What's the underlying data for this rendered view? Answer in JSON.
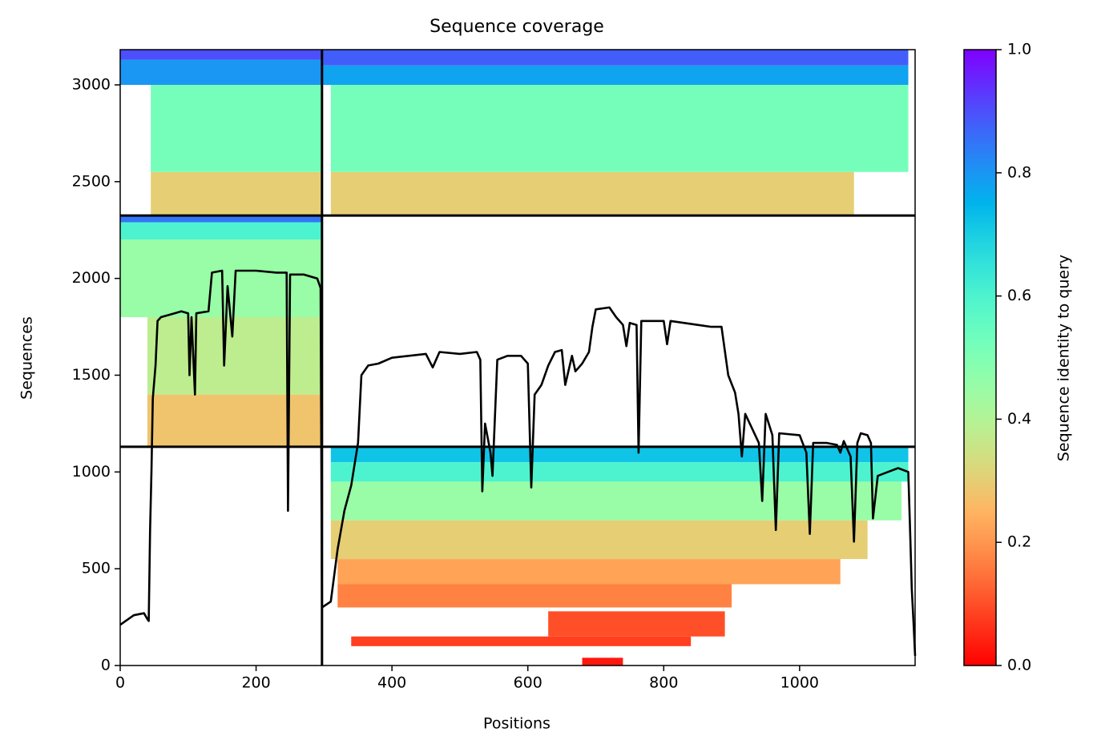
{
  "chart_data": {
    "type": "coverage",
    "title": "Sequence coverage",
    "xlabel": "Positions",
    "ylabel": "Sequences",
    "xlim": [
      0,
      1170
    ],
    "ylim": [
      0,
      3182
    ],
    "xticks": [
      0,
      200,
      400,
      600,
      800,
      1000
    ],
    "yticks": [
      0,
      500,
      1000,
      1500,
      2000,
      2500,
      3000
    ],
    "colormap": "rainbow_r",
    "colorbar": {
      "label": "Sequence identity to query",
      "lim": [
        0,
        1
      ],
      "ticks": [
        {
          "value": 0,
          "label": "0.0"
        },
        {
          "value": 0.2,
          "label": "0.2"
        },
        {
          "value": 0.4,
          "label": "0.4"
        },
        {
          "value": 0.6,
          "label": "0.6"
        },
        {
          "value": 0.8,
          "label": "0.8"
        },
        {
          "value": 1,
          "label": "1.0"
        }
      ]
    },
    "blocks": [
      {
        "x": [
          0,
          297
        ],
        "y": [
          3130,
          3182
        ],
        "identity": 0.9
      },
      {
        "x": [
          0,
          297
        ],
        "y": [
          3000,
          3130
        ],
        "identity": 0.8
      },
      {
        "x": [
          45,
          297
        ],
        "y": [
          2550,
          3000
        ],
        "identity": 0.52
      },
      {
        "x": [
          45,
          297
        ],
        "y": [
          2330,
          2550
        ],
        "identity": 0.3
      },
      {
        "x": [
          297,
          1160
        ],
        "y": [
          3100,
          3182
        ],
        "identity": 0.88
      },
      {
        "x": [
          297,
          1160
        ],
        "y": [
          3000,
          3100
        ],
        "identity": 0.78
      },
      {
        "x": [
          310,
          1160
        ],
        "y": [
          2550,
          3000
        ],
        "identity": 0.52
      },
      {
        "x": [
          310,
          1080
        ],
        "y": [
          2330,
          2550
        ],
        "identity": 0.3
      },
      {
        "x": [
          0,
          297
        ],
        "y": [
          2290,
          2325
        ],
        "identity": 0.85
      },
      {
        "x": [
          0,
          297
        ],
        "y": [
          2200,
          2290
        ],
        "identity": 0.6
      },
      {
        "x": [
          0,
          297
        ],
        "y": [
          1800,
          2200
        ],
        "identity": 0.45
      },
      {
        "x": [
          40,
          297
        ],
        "y": [
          1400,
          1800
        ],
        "identity": 0.38
      },
      {
        "x": [
          40,
          297
        ],
        "y": [
          1130,
          1400
        ],
        "identity": 0.28
      },
      {
        "x": [
          310,
          1160
        ],
        "y": [
          1050,
          1130
        ],
        "identity": 0.72
      },
      {
        "x": [
          310,
          1160
        ],
        "y": [
          950,
          1050
        ],
        "identity": 0.6
      },
      {
        "x": [
          310,
          1150
        ],
        "y": [
          750,
          950
        ],
        "identity": 0.45
      },
      {
        "x": [
          310,
          1100
        ],
        "y": [
          550,
          750
        ],
        "identity": 0.3
      },
      {
        "x": [
          320,
          1060
        ],
        "y": [
          420,
          550
        ],
        "identity": 0.22
      },
      {
        "x": [
          320,
          900
        ],
        "y": [
          300,
          420
        ],
        "identity": 0.17
      },
      {
        "x": [
          630,
          890
        ],
        "y": [
          150,
          280
        ],
        "identity": 0.1
      },
      {
        "x": [
          340,
          840
        ],
        "y": [
          100,
          150
        ],
        "identity": 0.08
      },
      {
        "x": [
          680,
          740
        ],
        "y": [
          0,
          40
        ],
        "identity": 0.03
      }
    ],
    "dividers": {
      "x": [
        297
      ],
      "y": [
        1130,
        2325
      ]
    },
    "coverage": {
      "color": "#000000",
      "x": [
        0,
        20,
        35,
        40,
        42,
        44,
        46,
        48,
        52,
        55,
        60,
        70,
        80,
        90,
        100,
        102,
        105,
        110,
        112,
        130,
        135,
        150,
        153,
        158,
        165,
        170,
        200,
        230,
        245,
        247,
        250,
        270,
        290,
        295,
        297,
        310,
        320,
        330,
        340,
        350,
        355,
        365,
        380,
        400,
        450,
        460,
        470,
        500,
        525,
        530,
        533,
        537,
        545,
        548,
        555,
        570,
        590,
        600,
        605,
        610,
        620,
        630,
        640,
        650,
        655,
        665,
        670,
        680,
        690,
        695,
        700,
        720,
        730,
        740,
        745,
        750,
        760,
        763,
        767,
        800,
        805,
        810,
        850,
        870,
        885,
        895,
        905,
        910,
        915,
        920,
        940,
        945,
        950,
        960,
        965,
        970,
        1000,
        1010,
        1015,
        1020,
        1040,
        1055,
        1060,
        1065,
        1075,
        1080,
        1085,
        1090,
        1100,
        1105,
        1108,
        1115,
        1130,
        1145,
        1160,
        1163,
        1165,
        1168,
        1170
      ],
      "values": [
        210,
        260,
        270,
        240,
        230,
        700,
        1000,
        1380,
        1550,
        1780,
        1800,
        1810,
        1820,
        1830,
        1820,
        1500,
        1800,
        1400,
        1820,
        1830,
        2030,
        2040,
        1550,
        1960,
        1700,
        2040,
        2040,
        2030,
        2030,
        800,
        2020,
        2020,
        2000,
        1950,
        300,
        330,
        600,
        800,
        930,
        1150,
        1500,
        1550,
        1560,
        1590,
        1610,
        1540,
        1620,
        1610,
        1620,
        1580,
        900,
        1250,
        1100,
        980,
        1580,
        1600,
        1600,
        1560,
        920,
        1400,
        1450,
        1550,
        1620,
        1630,
        1450,
        1600,
        1520,
        1560,
        1620,
        1750,
        1840,
        1850,
        1800,
        1760,
        1650,
        1770,
        1760,
        1100,
        1780,
        1780,
        1660,
        1780,
        1760,
        1750,
        1750,
        1500,
        1410,
        1300,
        1080,
        1300,
        1150,
        850,
        1300,
        1190,
        700,
        1200,
        1190,
        1100,
        680,
        1150,
        1150,
        1140,
        1100,
        1160,
        1080,
        640,
        1150,
        1200,
        1190,
        1150,
        760,
        980,
        1000,
        1020,
        1000,
        650,
        400,
        200,
        50
      ]
    }
  }
}
